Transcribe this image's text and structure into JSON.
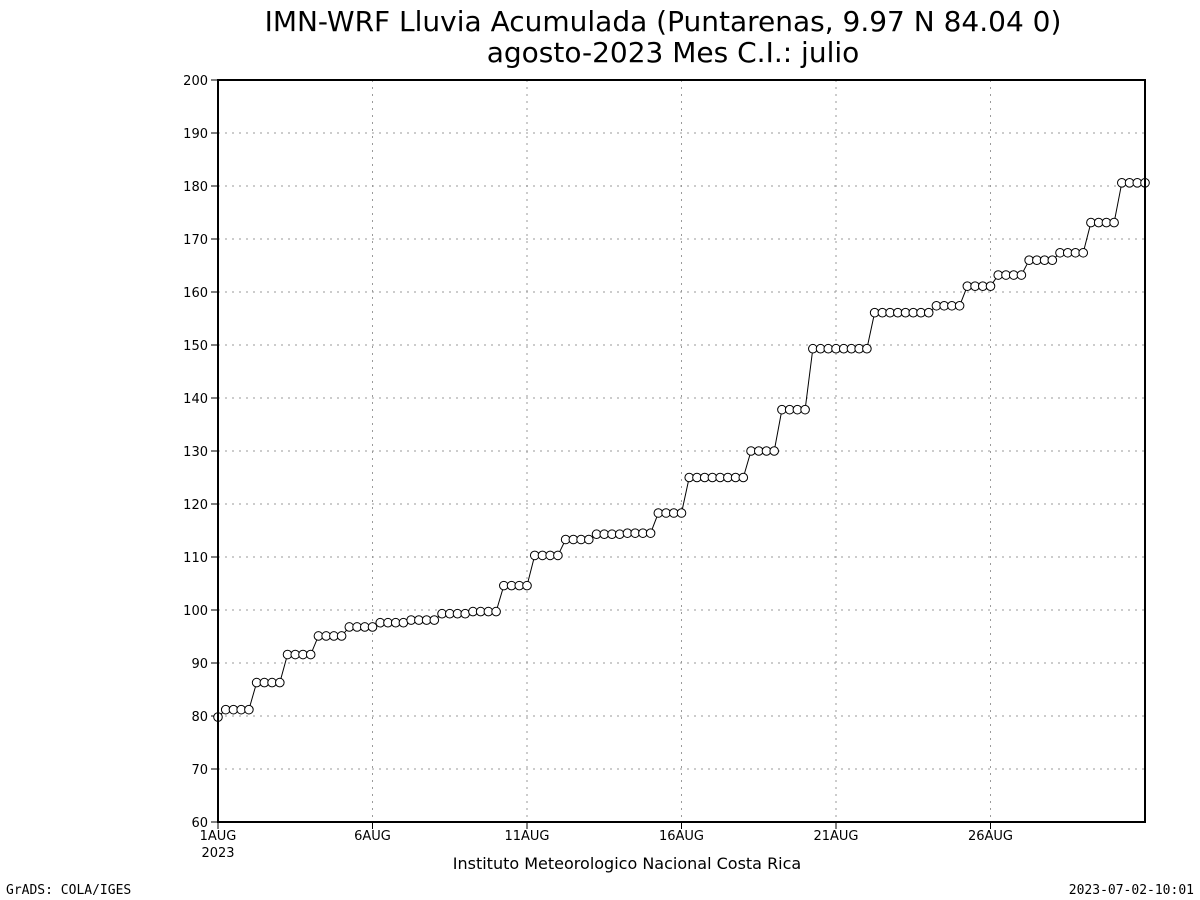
{
  "chart_data": {
    "type": "line",
    "title": "IMN-WRF  Lluvia Acumulada (Puntarenas, 9.97  N 84.04  0)",
    "subtitle": "agosto-2023 Mes C.I.: julio",
    "xlabel": "Instituto Meteorologico Nacional Costa Rica",
    "ylabel": "",
    "ylim": [
      60,
      200
    ],
    "yticks": [
      60,
      70,
      80,
      90,
      100,
      110,
      120,
      130,
      140,
      150,
      160,
      170,
      180,
      190,
      200
    ],
    "x_start": "2023-08-01T00",
    "x_end": "2023-08-31T00",
    "x_step_hours": 6,
    "xtick_labels": [
      {
        "x": "2023-08-01T00",
        "label": "1AUG",
        "sub": "2023"
      },
      {
        "x": "2023-08-06T00",
        "label": "6AUG"
      },
      {
        "x": "2023-08-11T00",
        "label": "11AUG"
      },
      {
        "x": "2023-08-16T00",
        "label": "16AUG"
      },
      {
        "x": "2023-08-21T00",
        "label": "21AUG"
      },
      {
        "x": "2023-08-26T00",
        "label": "26AUG"
      }
    ],
    "grid": true,
    "marker": "open-circle",
    "series": [
      {
        "values": [
          79.8,
          81.2,
          81.2,
          81.2,
          81.2,
          86.3,
          86.3,
          86.3,
          86.3,
          91.6,
          91.6,
          91.6,
          91.6,
          95.1,
          95.1,
          95.1,
          95.1,
          96.8,
          96.8,
          96.8,
          96.8,
          97.6,
          97.6,
          97.6,
          97.6,
          98.1,
          98.1,
          98.1,
          98.1,
          99.3,
          99.3,
          99.3,
          99.3,
          99.7,
          99.7,
          99.7,
          99.7,
          104.6,
          104.6,
          104.6,
          104.6,
          110.3,
          110.3,
          110.3,
          110.3,
          113.3,
          113.3,
          113.3,
          113.3,
          114.3,
          114.3,
          114.3,
          114.3,
          114.5,
          114.5,
          114.5,
          114.5,
          118.3,
          118.3,
          118.3,
          118.3,
          125.0,
          125.0,
          125.0,
          125.0,
          125.0,
          125.0,
          125.0,
          125.0,
          130.0,
          130.0,
          130.0,
          130.0,
          137.8,
          137.8,
          137.8,
          137.8,
          149.3,
          149.3,
          149.3,
          149.3,
          149.3,
          149.3,
          149.3,
          149.3,
          156.1,
          156.1,
          156.1,
          156.1,
          156.1,
          156.1,
          156.1,
          156.1,
          157.4,
          157.4,
          157.4,
          157.4,
          161.1,
          161.1,
          161.1,
          161.1,
          163.2,
          163.2,
          163.2,
          163.2,
          166.0,
          166.0,
          166.0,
          166.0,
          167.4,
          167.4,
          167.4,
          167.4,
          173.1,
          173.1,
          173.1,
          173.1,
          180.6,
          180.6,
          180.6,
          180.6
        ]
      }
    ]
  },
  "footer": {
    "left": "GrADS: COLA/IGES",
    "right": "2023-07-02-10:01"
  }
}
